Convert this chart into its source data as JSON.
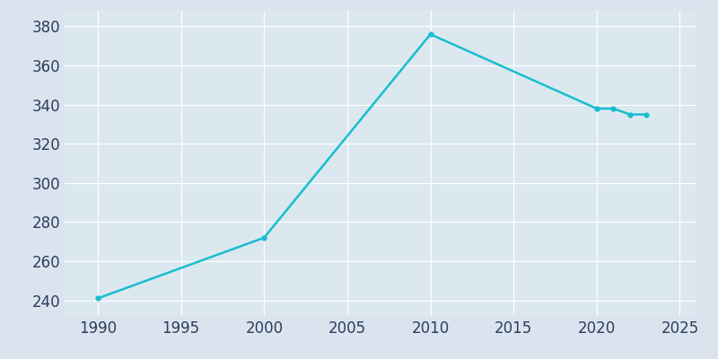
{
  "years": [
    1990,
    2000,
    2010,
    2020,
    2021,
    2022,
    2023
  ],
  "population": [
    241,
    272,
    376,
    338,
    338,
    335,
    335
  ],
  "line_color": "#17becf",
  "background_color": "#dbe4ee",
  "plot_background_color": "#dce8f0",
  "xlim": [
    1988,
    2026
  ],
  "ylim": [
    232,
    388
  ],
  "yticks": [
    240,
    260,
    280,
    300,
    320,
    340,
    360,
    380
  ],
  "xticks": [
    1990,
    1995,
    2000,
    2005,
    2010,
    2015,
    2020,
    2025
  ],
  "grid_color": "#ffffff",
  "tick_color": "#2b3d5e",
  "line_width": 1.8,
  "marker": "o",
  "marker_size": 3.5,
  "tick_fontsize": 12
}
